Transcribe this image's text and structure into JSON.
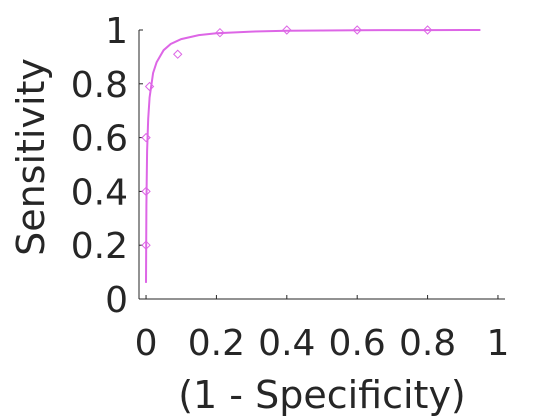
{
  "chart_data": {
    "type": "scatter",
    "title": "",
    "xlabel": "(1 - Specificity)",
    "ylabel": "Sensitivity",
    "xlim": [
      -0.02,
      1.02
    ],
    "ylim": [
      0,
      1
    ],
    "grid": false,
    "legend": "none",
    "x_ticks": [
      0,
      0.2,
      0.4,
      0.6,
      0.8,
      1
    ],
    "x_tick_labels": [
      "0",
      "0.2",
      "0.4",
      "0.6",
      "0.8",
      "1"
    ],
    "y_ticks": [
      0,
      0.2,
      0.4,
      0.6,
      0.8,
      1
    ],
    "y_tick_labels": [
      "0",
      "0.2",
      "0.4",
      "0.6",
      "0.8",
      "1"
    ],
    "series": [
      {
        "kind": "markers",
        "marker": "diamond",
        "color": "#dd66e6",
        "x": [
          0.0,
          0.0,
          0.0,
          0.01,
          0.09,
          0.21,
          0.4,
          0.6,
          0.8
        ],
        "y": [
          0.2,
          0.4,
          0.6,
          0.79,
          0.91,
          0.99,
          1.0,
          1.0,
          1.0
        ]
      },
      {
        "kind": "fit-curve",
        "color": "#dd66e6",
        "x": [
          0.0,
          0.001,
          0.003,
          0.006,
          0.01,
          0.02,
          0.03,
          0.05,
          0.07,
          0.1,
          0.15,
          0.2,
          0.3,
          0.4,
          0.5,
          0.6,
          0.7,
          0.8,
          0.9,
          0.95
        ],
        "y": [
          0.06,
          0.35,
          0.55,
          0.67,
          0.75,
          0.84,
          0.88,
          0.925,
          0.948,
          0.966,
          0.981,
          0.988,
          0.994,
          0.997,
          0.998,
          0.999,
          0.9995,
          0.9998,
          1.0,
          1.0
        ]
      }
    ]
  }
}
